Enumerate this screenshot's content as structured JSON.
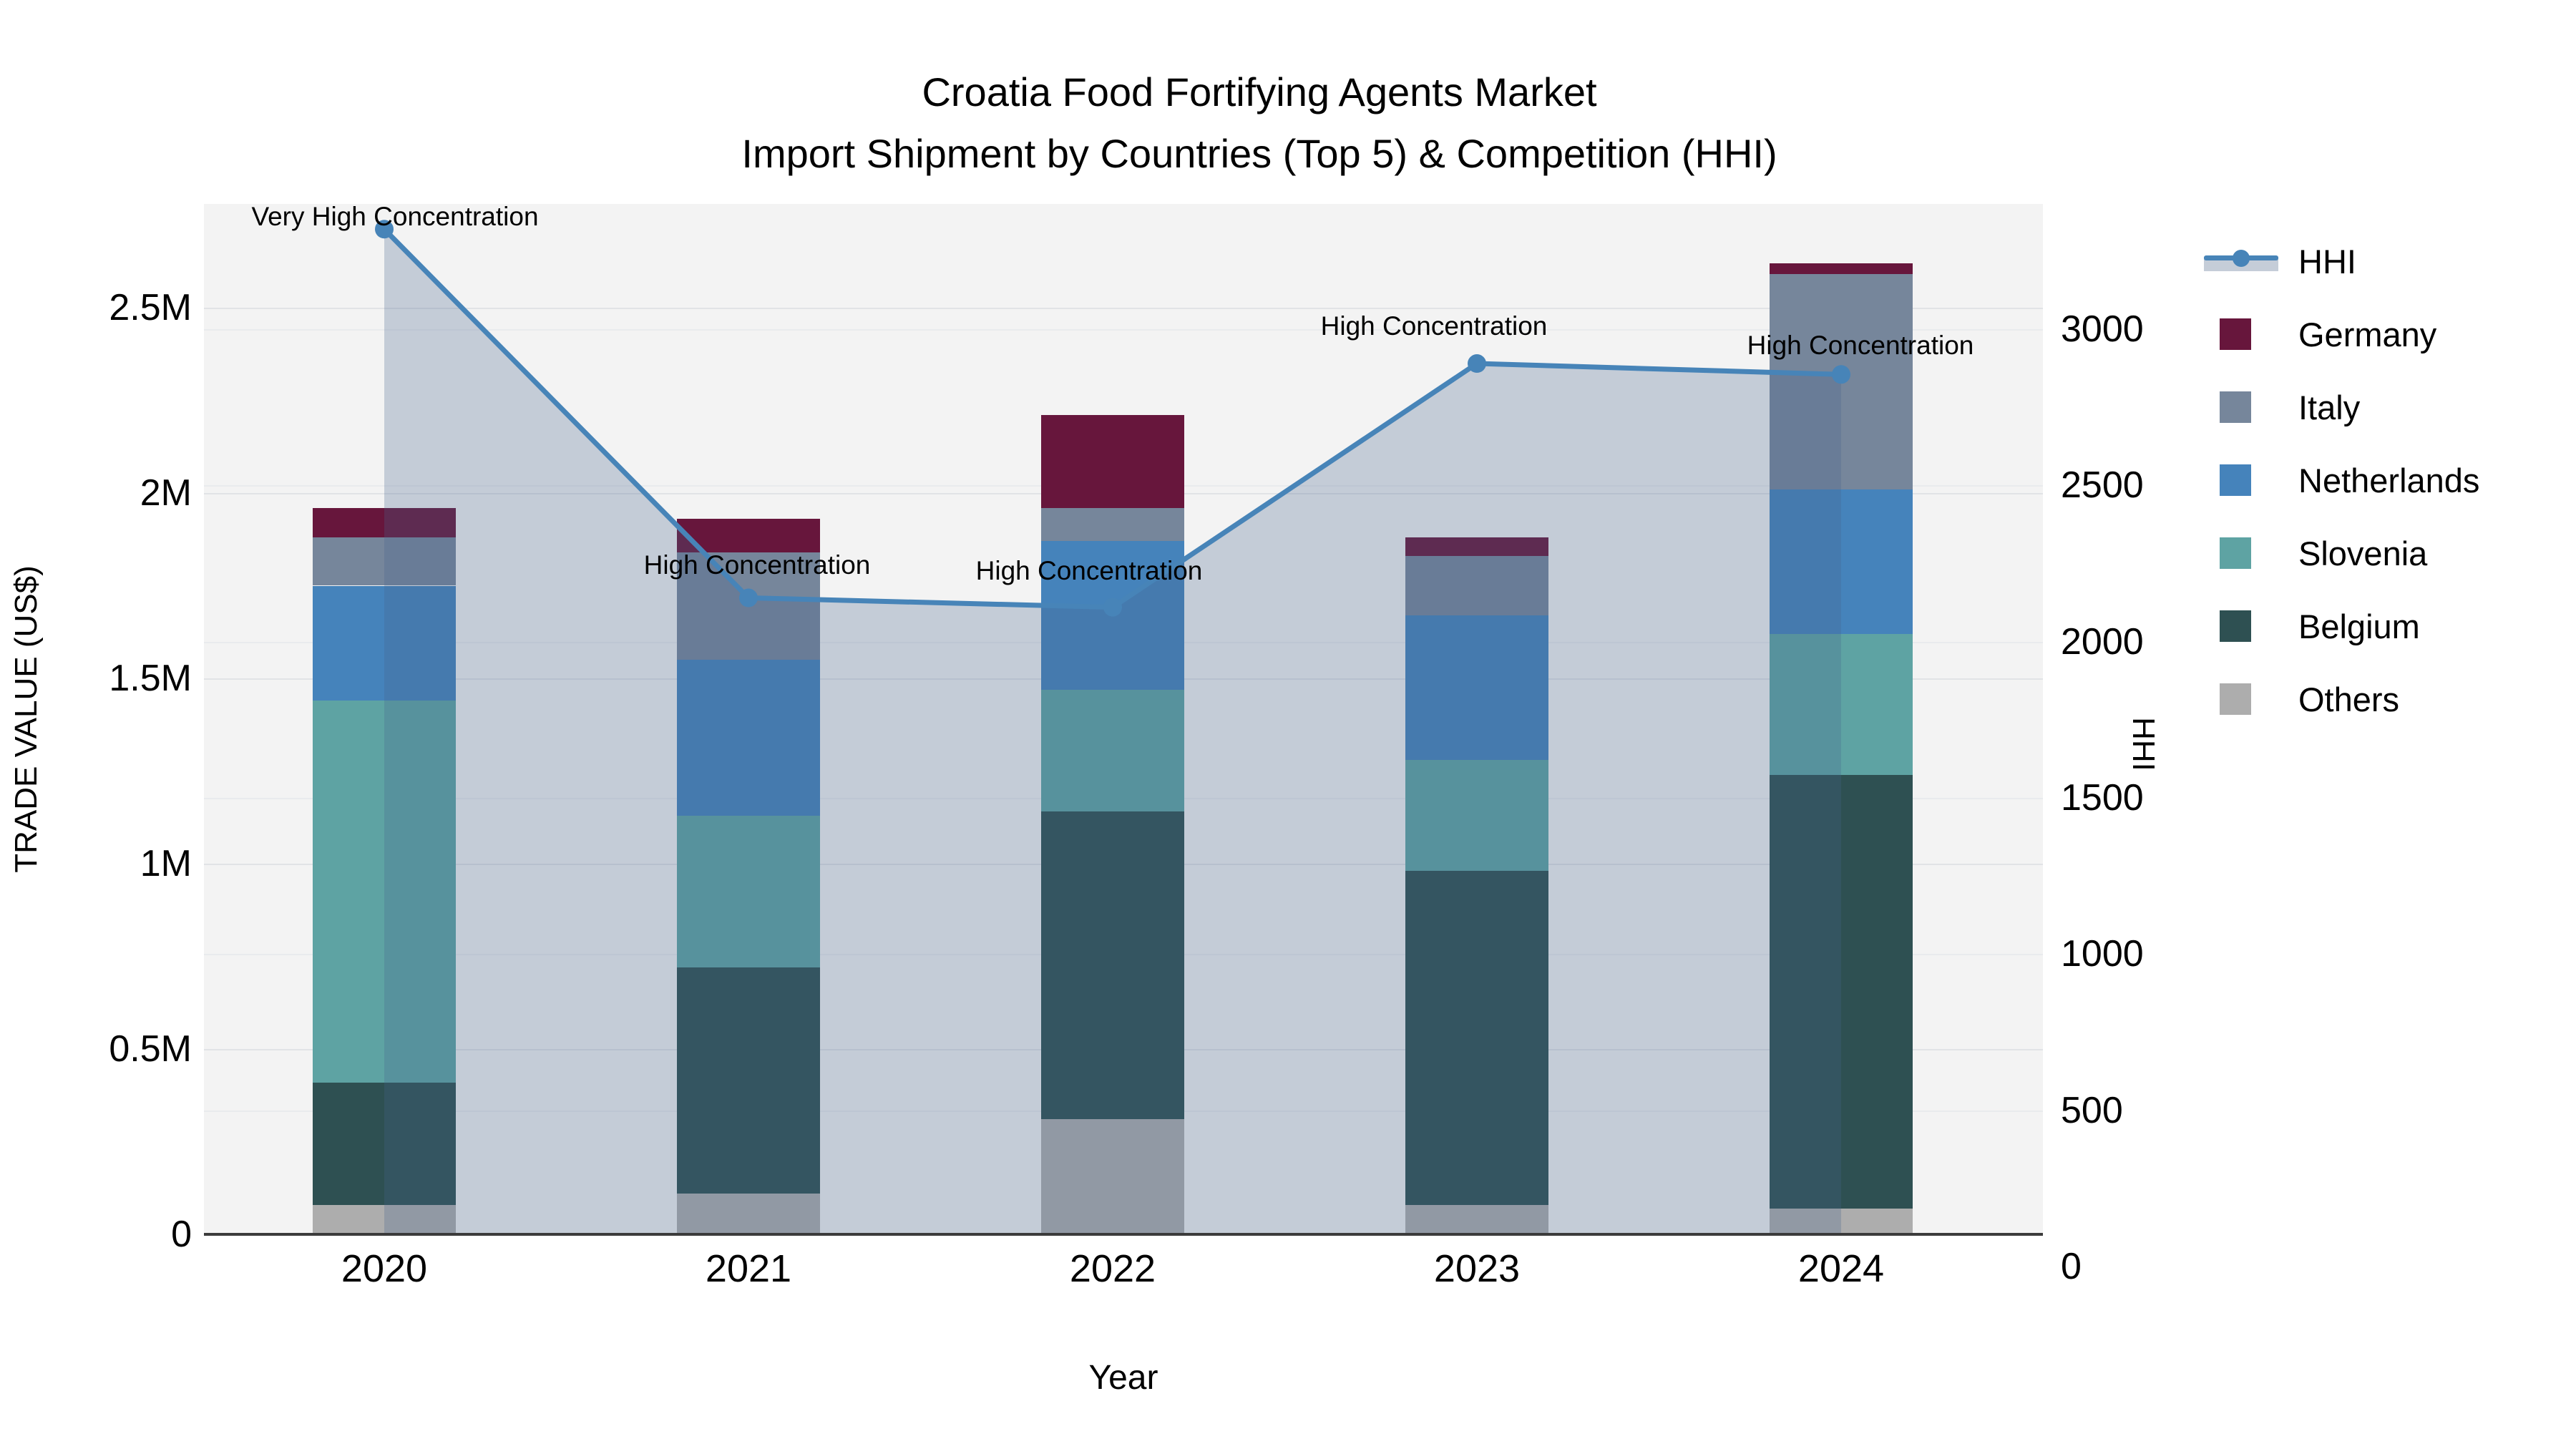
{
  "title": {
    "line1": "Croatia Food Fortifying Agents Market",
    "line2": "Import Shipment by Countries (Top 5) & Competition (HHI)"
  },
  "axes": {
    "y_left": {
      "title": "TRADE VALUE (US$)",
      "ticks": [
        {
          "label": "0",
          "value": 0
        },
        {
          "label": "0.5M",
          "value": 0.5
        },
        {
          "label": "1M",
          "value": 1
        },
        {
          "label": "1.5M",
          "value": 1.5
        },
        {
          "label": "2M",
          "value": 2
        },
        {
          "label": "2.5M",
          "value": 2.5
        }
      ]
    },
    "y_right": {
      "title": "HHI",
      "ticks": [
        {
          "label": "0",
          "value": 0
        },
        {
          "label": "500",
          "value": 500
        },
        {
          "label": "1000",
          "value": 1000
        },
        {
          "label": "1500",
          "value": 1500
        },
        {
          "label": "2000",
          "value": 2000
        },
        {
          "label": "2500",
          "value": 2500
        },
        {
          "label": "3000",
          "value": 3000
        }
      ]
    },
    "x": {
      "title": "Year"
    }
  },
  "legend": {
    "items": [
      {
        "key": "hhi",
        "label": "HHI",
        "type": "line"
      },
      {
        "key": "germany",
        "label": "Germany",
        "type": "square"
      },
      {
        "key": "italy",
        "label": "Italy",
        "type": "square"
      },
      {
        "key": "netherlands",
        "label": "Netherlands",
        "type": "square"
      },
      {
        "key": "slovenia",
        "label": "Slovenia",
        "type": "square"
      },
      {
        "key": "belgium",
        "label": "Belgium",
        "type": "square"
      },
      {
        "key": "others",
        "label": "Others",
        "type": "square"
      }
    ]
  },
  "colors": {
    "hhi_line": "#4784B8",
    "hhi_area": "rgba(70,100,140,0.27)",
    "germany": "#67163C",
    "italy": "#76869B",
    "netherlands": "#4583BB",
    "slovenia": "#5EA3A3",
    "belgium": "#2E5052",
    "others": "#ADADAD",
    "plot_background": "#f3f3f3",
    "axis_line": "#3b3b3b"
  },
  "chart_data": {
    "type": "stacked-bar+line",
    "categories": [
      "2020",
      "2021",
      "2022",
      "2023",
      "2024"
    ],
    "values_unit": "millions of US$",
    "stack_order": [
      "others",
      "belgium",
      "slovenia",
      "netherlands",
      "italy",
      "germany"
    ],
    "series": {
      "germany": {
        "label": "Germany",
        "values": [
          0.08,
          0.09,
          0.25,
          0.05,
          0.03
        ]
      },
      "italy": {
        "label": "Italy",
        "values": [
          0.13,
          0.29,
          0.09,
          0.16,
          0.58
        ]
      },
      "netherlands": {
        "label": "Netherlands",
        "values": [
          0.31,
          0.42,
          0.4,
          0.39,
          0.39
        ]
      },
      "slovenia": {
        "label": "Slovenia",
        "values": [
          1.03,
          0.41,
          0.33,
          0.3,
          0.38
        ]
      },
      "belgium": {
        "label": "Belgium",
        "values": [
          0.33,
          0.61,
          0.83,
          0.9,
          1.17
        ]
      },
      "others": {
        "label": "Others",
        "values": [
          0.08,
          0.11,
          0.31,
          0.08,
          0.07
        ]
      }
    },
    "bar_totals": [
      1.96,
      1.93,
      2.21,
      1.88,
      2.62
    ],
    "hhi": {
      "label": "HHI",
      "values": [
        3320,
        2140,
        2110,
        2890,
        2855
      ]
    },
    "annotations": [
      {
        "year": "2020",
        "text": "Very High Concentration"
      },
      {
        "year": "2021",
        "text": "High Concentration"
      },
      {
        "year": "2022",
        "text": "High Concentration"
      },
      {
        "year": "2023",
        "text": "High Concentration"
      },
      {
        "year": "2024",
        "text": "High Concentration"
      }
    ],
    "y_left_range_millions": [
      0,
      2.78
    ],
    "y_right_range": [
      0,
      3300
    ],
    "grid": true,
    "legend_position": "right"
  }
}
